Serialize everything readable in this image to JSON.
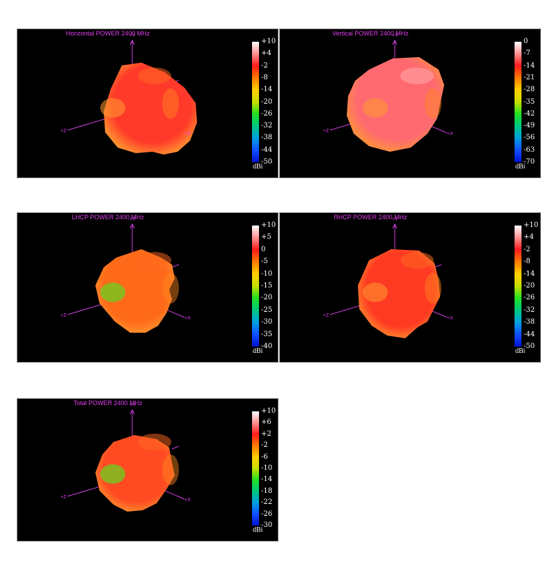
{
  "chart_data": [
    {
      "type": "3d-radiation-pattern",
      "title": "Horizontal POWER 2400  MHz",
      "colorbar": {
        "unit": "dBi",
        "ticks": [
          "+10",
          "+4",
          "-2",
          "-8",
          "-14",
          "-20",
          "-26",
          "-32",
          "-38",
          "-44",
          "-50"
        ],
        "range": [
          -50,
          10
        ]
      },
      "axes": [
        "+Y",
        "+Z",
        "+X"
      ],
      "dominant_color": "#ff3a2a"
    },
    {
      "type": "3d-radiation-pattern",
      "title": "Vertical POWER 2400  MHz",
      "colorbar": {
        "unit": "dBi",
        "ticks": [
          "0",
          "-7",
          "-14",
          "-21",
          "-28",
          "-35",
          "-42",
          "-49",
          "-56",
          "-63",
          "-70"
        ],
        "range": [
          -70,
          0
        ]
      },
      "axes": [
        "+Y",
        "+Z",
        "+X"
      ],
      "dominant_color": "#ff6a70"
    },
    {
      "type": "3d-radiation-pattern",
      "title": "LHCP POWER 2400  MHz",
      "colorbar": {
        "unit": "dBi",
        "ticks": [
          "+10",
          "+5",
          "0",
          "-5",
          "-10",
          "-15",
          "-20",
          "-25",
          "-30",
          "-35",
          "-40"
        ],
        "range": [
          -40,
          10
        ]
      },
      "axes": [
        "+Y",
        "+Z",
        "+X"
      ],
      "dominant_color": "#ff6a1a"
    },
    {
      "type": "3d-radiation-pattern",
      "title": "RHCP POWER 2400  MHz",
      "colorbar": {
        "unit": "dBi",
        "ticks": [
          "+10",
          "+4",
          "-2",
          "-8",
          "-14",
          "-20",
          "-26",
          "-32",
          "-38",
          "-44",
          "-50"
        ],
        "range": [
          -50,
          10
        ]
      },
      "axes": [
        "+Y",
        "+Z",
        "+X"
      ],
      "dominant_color": "#ff3a22"
    },
    {
      "type": "3d-radiation-pattern",
      "title": "Total POWER 2400  MHz",
      "colorbar": {
        "unit": "dBi",
        "ticks": [
          "+10",
          "+6",
          "+2",
          "-2",
          "-6",
          "-10",
          "-14",
          "-18",
          "-22",
          "-26",
          "-30"
        ],
        "range": [
          -30,
          10
        ]
      },
      "axes": [
        "+Y",
        "+Z",
        "+X"
      ],
      "dominant_color": "#ff4a22"
    }
  ],
  "colorbar_gradient": [
    "#ffffff",
    "#ff9090",
    "#ff1a1a",
    "#ff7a00",
    "#ffd000",
    "#c8e000",
    "#20e020",
    "#00c880",
    "#00a0e0",
    "#1050ff",
    "#0010d0"
  ]
}
